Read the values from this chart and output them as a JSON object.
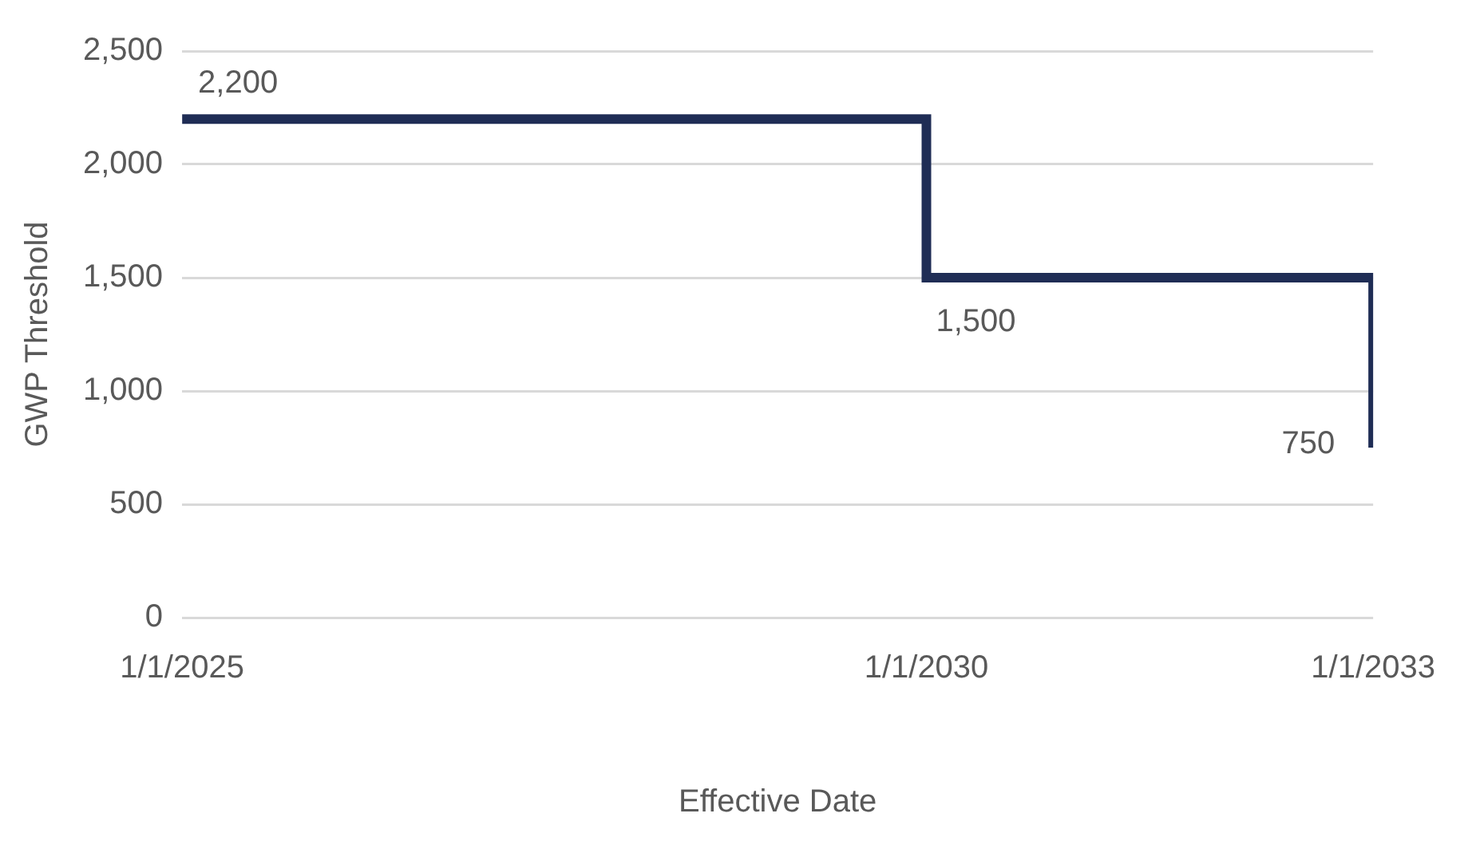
{
  "chart_data": {
    "type": "step",
    "xlabel": "Effective Date",
    "ylabel": "GWP Threshold",
    "x": [
      "2025-01-01",
      "2030-01-01",
      "2033-01-01"
    ],
    "series": [
      {
        "color": "#1f2d55",
        "values": [
          2200,
          1500,
          750
        ],
        "value_labels": [
          "2,200",
          "1,500",
          "750"
        ]
      }
    ],
    "xlim": [
      "2025-01-01",
      "2033-01-01"
    ],
    "xticks": [
      {
        "value": "2025-01-01",
        "label": "1/1/2025"
      },
      {
        "value": "2030-01-01",
        "label": "1/1/2030"
      },
      {
        "value": "2033-01-01",
        "label": "1/1/2033"
      }
    ],
    "ylim": [
      0,
      2500
    ],
    "yticks": [
      0,
      {
        "value": 500,
        "label": "500"
      },
      {
        "value": 1000,
        "label": "1,000"
      },
      {
        "value": 1500,
        "label": "1,500"
      },
      {
        "value": 2000,
        "label": "2,000"
      },
      {
        "value": 2500,
        "label": "2,500"
      }
    ],
    "grid": "y",
    "legend": false
  }
}
